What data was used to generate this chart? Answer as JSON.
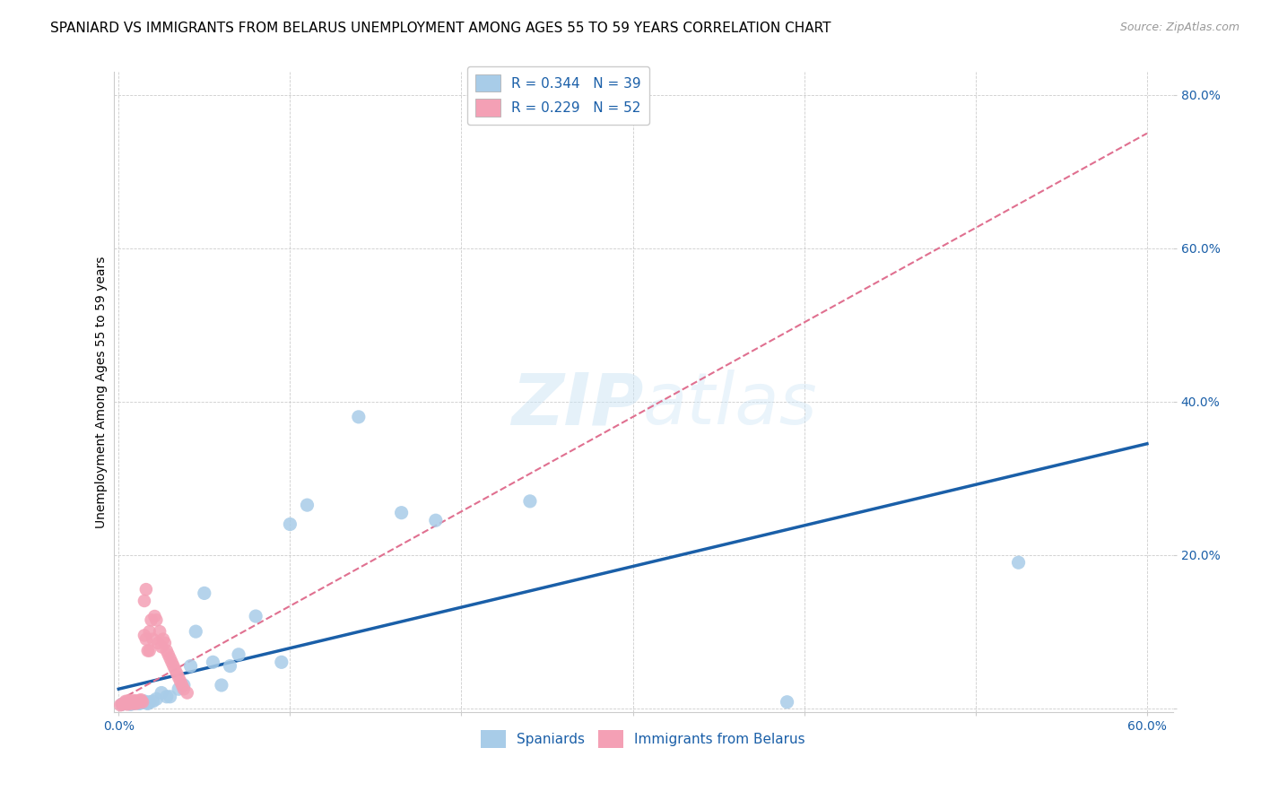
{
  "title": "SPANIARD VS IMMIGRANTS FROM BELARUS UNEMPLOYMENT AMONG AGES 55 TO 59 YEARS CORRELATION CHART",
  "source": "Source: ZipAtlas.com",
  "ylabel": "Unemployment Among Ages 55 to 59 years",
  "xlim": [
    -0.003,
    0.615
  ],
  "ylim": [
    -0.005,
    0.83
  ],
  "xticks": [
    0.0,
    0.1,
    0.2,
    0.3,
    0.4,
    0.5,
    0.6
  ],
  "yticks": [
    0.0,
    0.2,
    0.4,
    0.6,
    0.8
  ],
  "xtick_labels_show": [
    "0.0%",
    "",
    "",
    "",
    "",
    "",
    "60.0%"
  ],
  "ytick_labels_show": [
    "",
    "20.0%",
    "40.0%",
    "60.0%",
    "80.0%"
  ],
  "spaniards_x": [
    0.002,
    0.004,
    0.005,
    0.006,
    0.007,
    0.008,
    0.009,
    0.01,
    0.011,
    0.012,
    0.013,
    0.015,
    0.016,
    0.017,
    0.018,
    0.02,
    0.022,
    0.025,
    0.028,
    0.03,
    0.035,
    0.038,
    0.042,
    0.045,
    0.05,
    0.055,
    0.06,
    0.065,
    0.07,
    0.08,
    0.095,
    0.1,
    0.11,
    0.14,
    0.165,
    0.185,
    0.24,
    0.39,
    0.525
  ],
  "spaniards_y": [
    0.005,
    0.007,
    0.006,
    0.008,
    0.005,
    0.007,
    0.006,
    0.008,
    0.007,
    0.006,
    0.007,
    0.009,
    0.007,
    0.006,
    0.008,
    0.009,
    0.012,
    0.02,
    0.015,
    0.015,
    0.025,
    0.03,
    0.055,
    0.1,
    0.15,
    0.06,
    0.03,
    0.055,
    0.07,
    0.12,
    0.06,
    0.24,
    0.265,
    0.38,
    0.255,
    0.245,
    0.27,
    0.008,
    0.19
  ],
  "belarus_x": [
    0.001,
    0.002,
    0.003,
    0.004,
    0.004,
    0.005,
    0.005,
    0.006,
    0.006,
    0.007,
    0.007,
    0.008,
    0.008,
    0.009,
    0.009,
    0.01,
    0.01,
    0.011,
    0.011,
    0.012,
    0.012,
    0.013,
    0.013,
    0.014,
    0.015,
    0.015,
    0.016,
    0.016,
    0.017,
    0.018,
    0.018,
    0.019,
    0.02,
    0.021,
    0.022,
    0.023,
    0.024,
    0.025,
    0.026,
    0.027,
    0.028,
    0.029,
    0.03,
    0.031,
    0.032,
    0.033,
    0.034,
    0.035,
    0.036,
    0.037,
    0.038,
    0.04
  ],
  "belarus_y": [
    0.004,
    0.005,
    0.006,
    0.007,
    0.009,
    0.005,
    0.008,
    0.006,
    0.01,
    0.007,
    0.009,
    0.006,
    0.008,
    0.007,
    0.01,
    0.006,
    0.009,
    0.007,
    0.009,
    0.008,
    0.01,
    0.009,
    0.011,
    0.008,
    0.14,
    0.095,
    0.155,
    0.09,
    0.075,
    0.1,
    0.075,
    0.115,
    0.09,
    0.12,
    0.115,
    0.085,
    0.1,
    0.08,
    0.09,
    0.085,
    0.075,
    0.07,
    0.065,
    0.06,
    0.055,
    0.05,
    0.045,
    0.04,
    0.035,
    0.03,
    0.025,
    0.02
  ],
  "R_spaniards": 0.344,
  "N_spaniards": 39,
  "R_belarus": 0.229,
  "N_belarus": 52,
  "color_spaniards": "#a8cce8",
  "color_belarus": "#f4a0b5",
  "trendline_spaniards_color": "#1a5fa8",
  "trendline_belarus_color": "#e07090",
  "spaniards_trend_x0": 0.0,
  "spaniards_trend_x1": 0.6,
  "spaniards_trend_y0": 0.025,
  "spaniards_trend_y1": 0.345,
  "belarus_trend_x0": 0.0,
  "belarus_trend_x1": 0.6,
  "belarus_trend_y0": 0.01,
  "belarus_trend_y1": 0.75,
  "watermark_zip": "ZIP",
  "watermark_atlas": "atlas",
  "background_color": "#ffffff",
  "title_fontsize": 11,
  "axis_label_fontsize": 10,
  "tick_fontsize": 10,
  "legend_fontsize": 11,
  "source_fontsize": 9
}
